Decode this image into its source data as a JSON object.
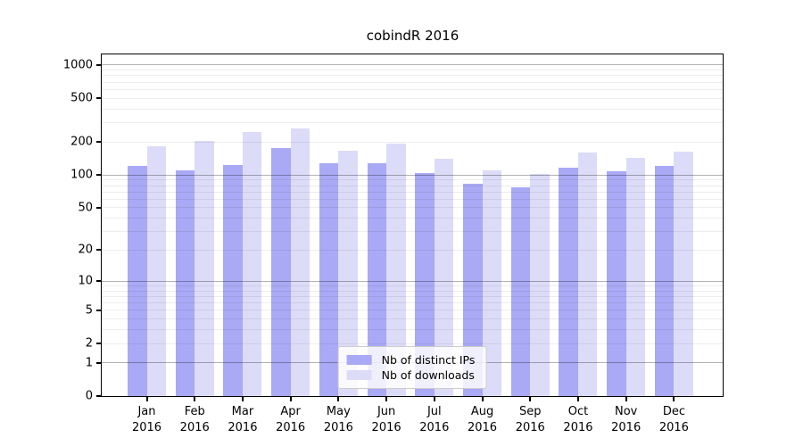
{
  "chart_data": {
    "type": "bar",
    "title": "cobindR 2016",
    "scale": "log1p",
    "categories": [
      "Jan",
      "Feb",
      "Mar",
      "Apr",
      "May",
      "Jun",
      "Jul",
      "Aug",
      "Sep",
      "Oct",
      "Nov",
      "Dec"
    ],
    "year_label": "2016",
    "series": [
      {
        "name": "Nb of distinct IPs",
        "color": "#a9a9f5",
        "values": [
          120,
          110,
          123,
          176,
          129,
          129,
          105,
          83,
          77,
          117,
          108,
          121
        ]
      },
      {
        "name": "Nb of downloads",
        "color": "#dcdcf8",
        "values": [
          183,
          205,
          245,
          267,
          168,
          195,
          141,
          111,
          103,
          160,
          143,
          162
        ]
      }
    ],
    "yticks": [
      1000,
      500,
      200,
      100,
      50,
      20,
      10,
      5,
      2,
      1,
      0
    ],
    "ylim_top": 1250,
    "grid": {
      "minor_color": "rgba(0,0,0,0.07)",
      "major_color": "rgba(0,0,0,0.30)",
      "major_values": [
        1,
        10,
        100,
        1000
      ],
      "minor_base_values": [
        2,
        3,
        4,
        5,
        6,
        7,
        8,
        9
      ],
      "minor_decades": [
        1,
        10,
        100
      ]
    },
    "legend_position": "lower center"
  }
}
